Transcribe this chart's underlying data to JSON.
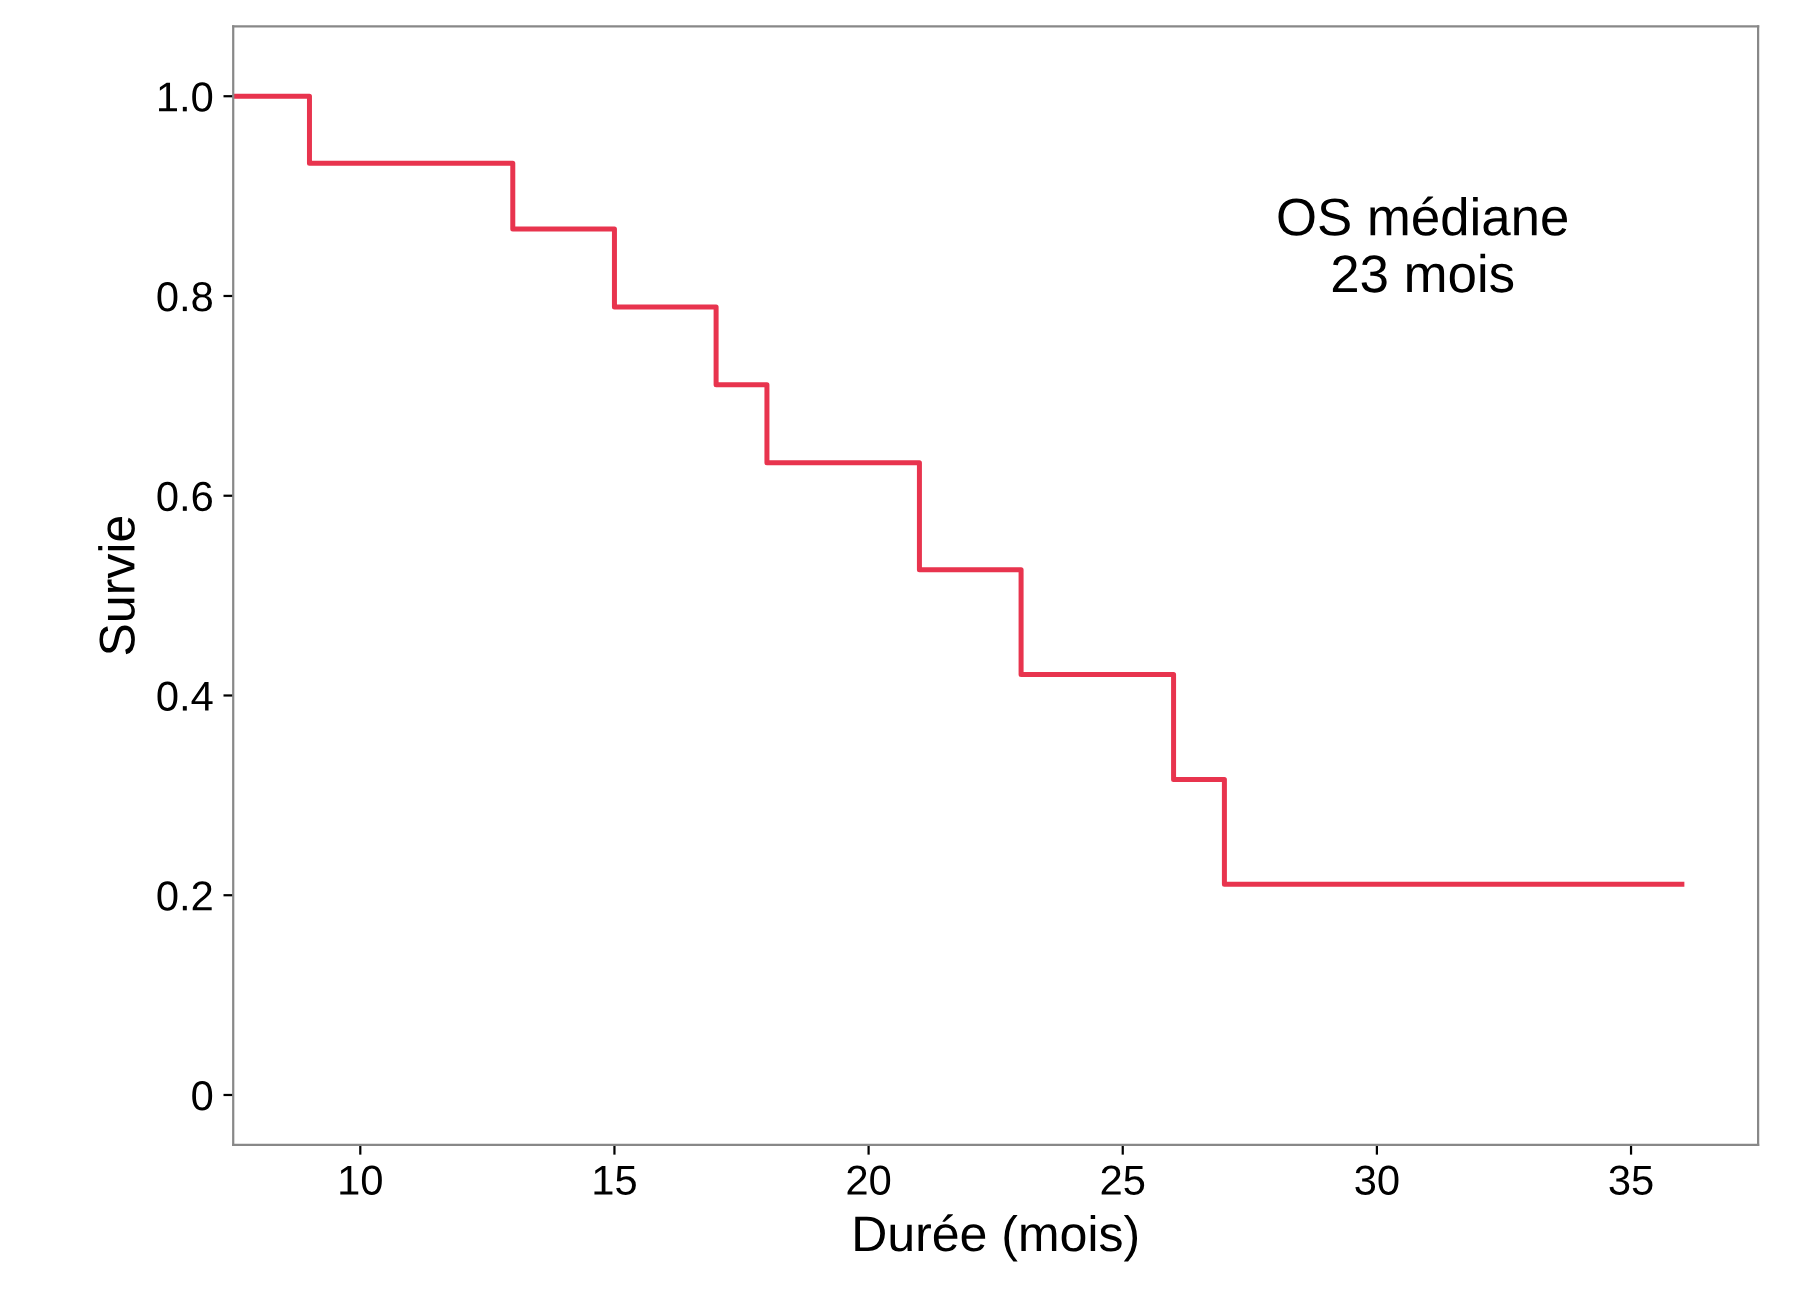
{
  "chart_data": {
    "type": "step",
    "xlabel": "Durée (mois)",
    "ylabel": "Survie",
    "x": [
      7.5,
      9,
      13,
      15,
      17,
      18,
      21,
      23,
      26,
      27,
      36
    ],
    "series": [
      {
        "color": "#e8344e",
        "values": [
          1.0,
          0.933,
          0.867,
          0.789,
          0.711,
          0.633,
          0.526,
          0.421,
          0.316,
          0.211,
          0.211
        ]
      }
    ],
    "xlim": [
      7.5,
      37.5
    ],
    "xticks": [
      10,
      15,
      20,
      25,
      30,
      35
    ],
    "ylim": [
      -0.05,
      1.07
    ],
    "yticks": [
      {
        "value": 0,
        "label": "0"
      },
      0.2,
      0.4,
      0.6,
      0.8,
      {
        "value": 1,
        "label": "1.0"
      }
    ],
    "annotations": [
      "OS médiane\n23 mois"
    ],
    "grid": false,
    "legend": false
  }
}
